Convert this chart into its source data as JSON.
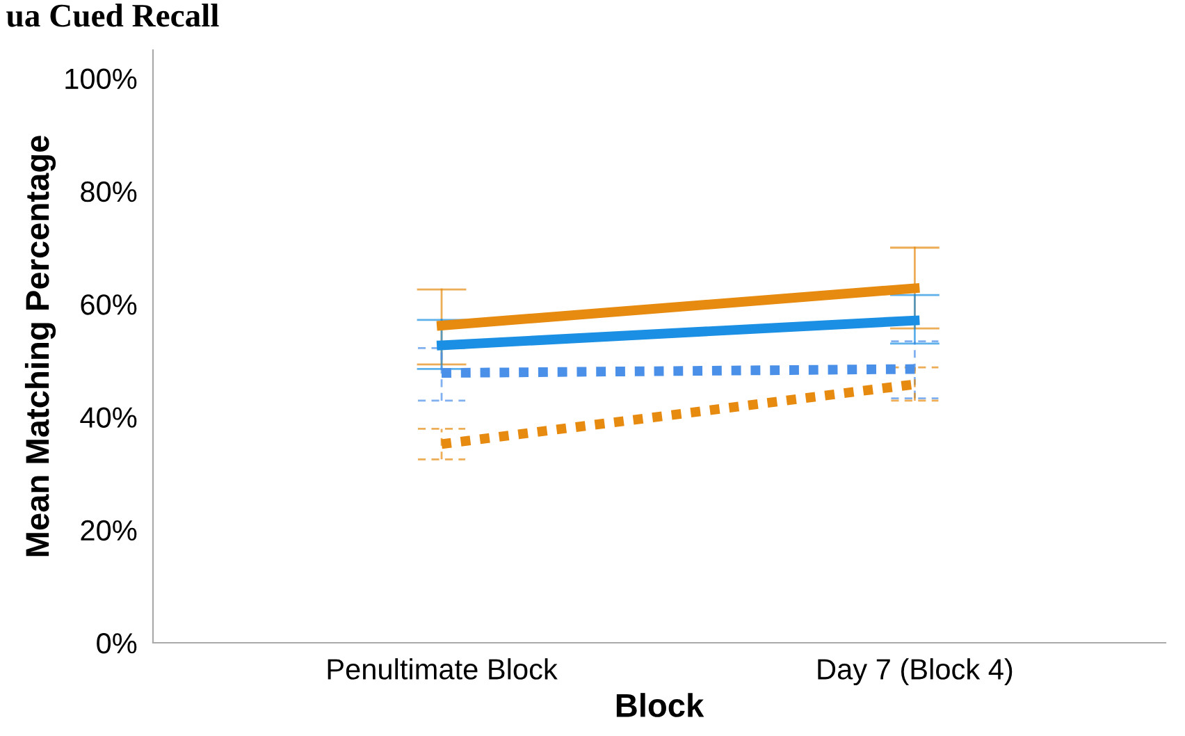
{
  "chart_data": {
    "type": "line",
    "title": "ua Cued Recall",
    "xlabel": "Block",
    "ylabel": "Mean Matching Percentage",
    "categories": [
      "Penultimate Block",
      "Day 7 (Block 4)"
    ],
    "series": [
      {
        "color": "#e68a10",
        "values": [
          56.2,
          62.8
        ],
        "errors": [
          [
            49.3,
            62.6
          ],
          [
            55.7,
            70.0
          ]
        ],
        "line_style": "solid"
      },
      {
        "color": "#1a8fe3",
        "values": [
          52.7,
          57.1
        ],
        "errors": [
          [
            48.5,
            57.2
          ],
          [
            53.0,
            61.6
          ]
        ],
        "line_style": "solid"
      },
      {
        "color": "#4a8fe8",
        "values": [
          47.8,
          48.5
        ],
        "errors": [
          [
            42.9,
            52.2
          ],
          [
            43.3,
            53.4
          ]
        ],
        "line_style": "dotted"
      },
      {
        "color": "#e68a10",
        "values": [
          35.2,
          45.8
        ],
        "errors": [
          [
            32.5,
            37.9
          ],
          [
            42.9,
            48.8
          ]
        ],
        "line_style": "dotted"
      }
    ],
    "ylim": [
      0,
      105
    ],
    "yticks": [
      {
        "value": 0,
        "label": "0%"
      },
      {
        "value": 20,
        "label": "20%"
      },
      {
        "value": 40,
        "label": "40%"
      },
      {
        "value": 60,
        "label": "60%"
      },
      {
        "value": 80,
        "label": "80%"
      },
      {
        "value": 100,
        "label": "100%"
      }
    ],
    "grid": false,
    "legend": false,
    "marker": "none"
  }
}
